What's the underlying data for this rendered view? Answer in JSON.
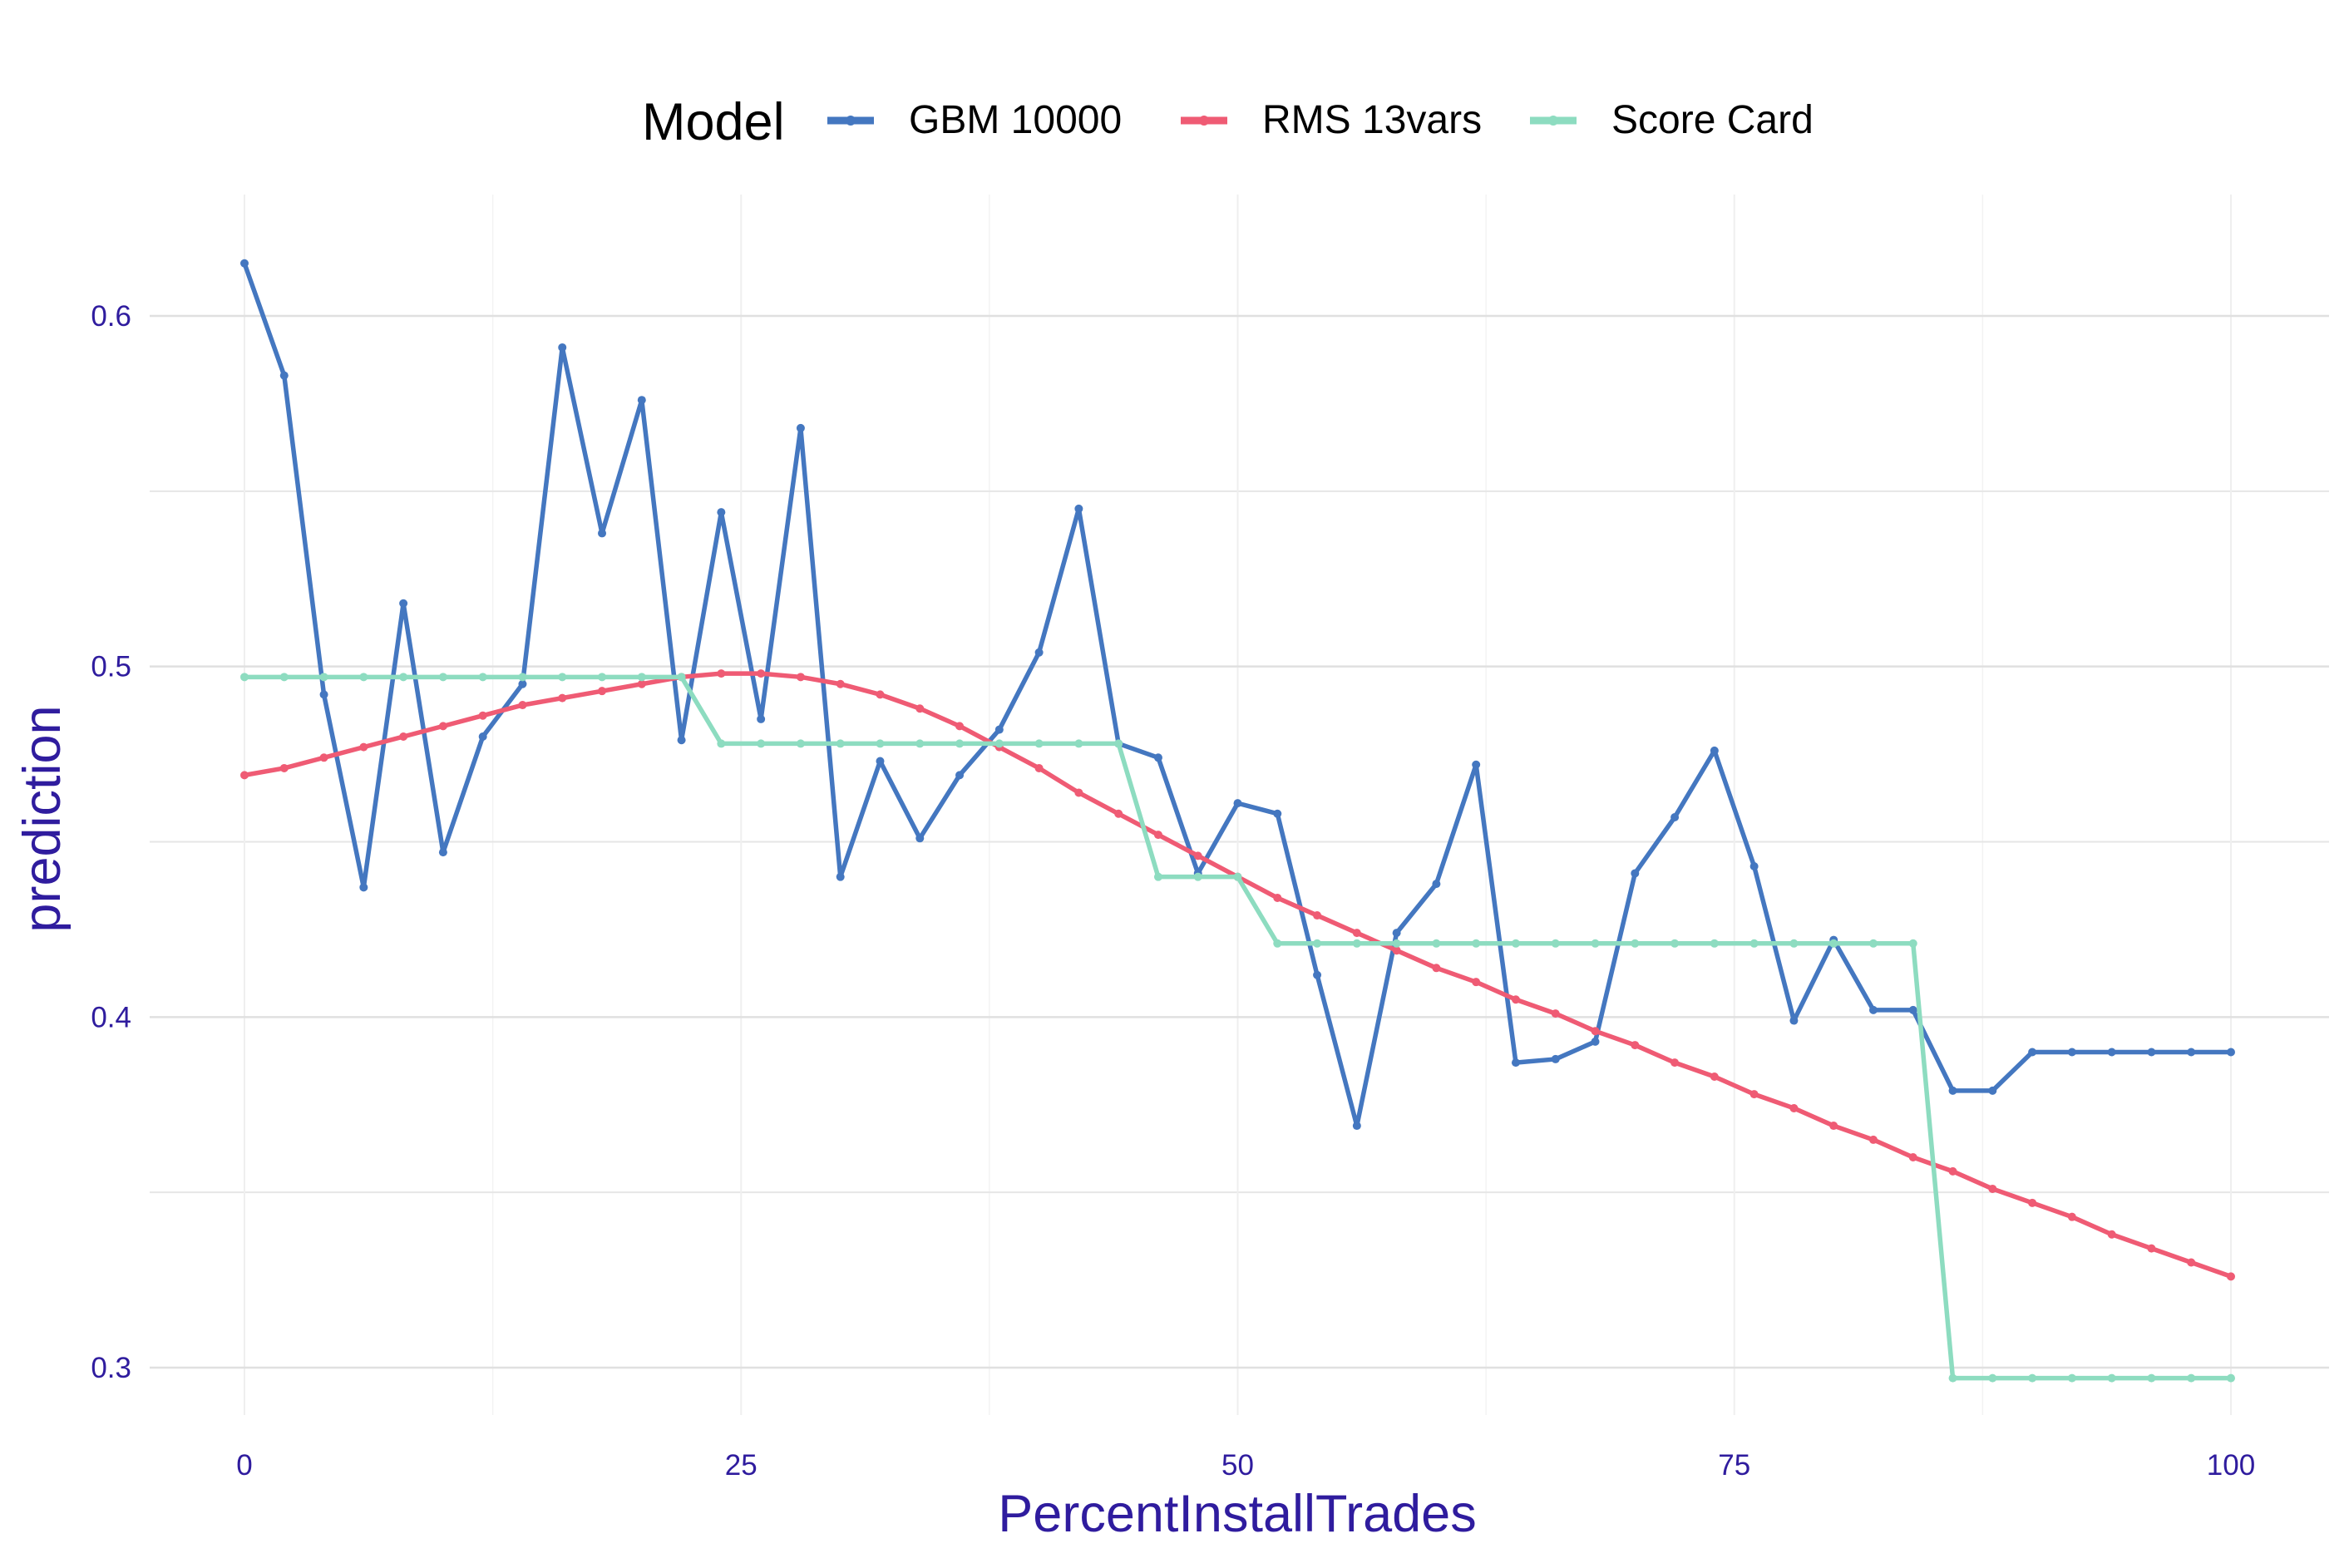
{
  "chart_data": {
    "type": "line",
    "title": "",
    "xlabel": "PercentInstallTrades",
    "ylabel": "prediction",
    "xlim": [
      -5,
      103
    ],
    "ylim": [
      0.284,
      0.628
    ],
    "xticks": [
      0,
      25,
      50,
      75,
      100
    ],
    "xtick_labels": [
      "0",
      "25",
      "50",
      "75",
      "100"
    ],
    "yticks": [
      0.3,
      0.4,
      0.5,
      0.6
    ],
    "ytick_labels": [
      "0.3",
      "0.4",
      "0.5",
      "0.6"
    ],
    "grid": true,
    "legend": {
      "title": "Model",
      "position": "top",
      "entries": [
        "GBM 10000",
        "RMS 13vars",
        "Score Card"
      ]
    },
    "x": [
      0,
      2,
      4,
      6,
      8,
      10,
      12,
      14,
      16,
      18,
      20,
      22,
      24,
      26,
      28,
      30,
      32,
      34,
      36,
      38,
      40,
      42,
      44,
      46,
      48,
      50,
      52,
      54,
      56,
      58,
      60,
      62,
      64,
      66,
      68,
      70,
      72,
      74,
      76,
      78,
      80,
      82,
      84,
      86,
      88,
      90,
      92,
      94,
      96,
      98,
      100
    ],
    "series": [
      {
        "name": "GBM 10000",
        "color": "#4477C0",
        "values": [
          0.615,
          0.583,
          0.492,
          0.437,
          0.518,
          0.447,
          0.48,
          0.495,
          0.591,
          0.538,
          0.576,
          0.479,
          0.544,
          0.485,
          0.568,
          0.44,
          0.473,
          0.451,
          0.469,
          0.482,
          0.504,
          0.545,
          0.478,
          0.474,
          0.441,
          0.461,
          0.458,
          0.412,
          0.369,
          0.424,
          0.438,
          0.472,
          0.387,
          0.388,
          0.393,
          0.441,
          0.457,
          0.476,
          0.443,
          0.399,
          0.422,
          0.402,
          0.402,
          0.379,
          0.379,
          0.39,
          0.39,
          0.39,
          0.39,
          0.39,
          0.39
        ]
      },
      {
        "name": "RMS 13vars",
        "color": "#EF5B74",
        "values": [
          0.469,
          0.471,
          0.474,
          0.477,
          0.48,
          0.483,
          0.486,
          0.489,
          0.491,
          0.493,
          0.495,
          0.497,
          0.498,
          0.498,
          0.497,
          0.495,
          0.492,
          0.488,
          0.483,
          0.477,
          0.471,
          0.464,
          0.458,
          0.452,
          0.446,
          0.44,
          0.434,
          0.429,
          0.424,
          0.419,
          0.414,
          0.41,
          0.405,
          0.401,
          0.396,
          0.392,
          0.387,
          0.383,
          0.378,
          0.374,
          0.369,
          0.365,
          0.36,
          0.356,
          0.351,
          0.347,
          0.343,
          0.338,
          0.334,
          0.33,
          0.326
        ]
      },
      {
        "name": "Score Card",
        "color": "#8DDCC0",
        "values": [
          0.497,
          0.497,
          0.497,
          0.497,
          0.497,
          0.497,
          0.497,
          0.497,
          0.497,
          0.497,
          0.497,
          0.497,
          0.478,
          0.478,
          0.478,
          0.478,
          0.478,
          0.478,
          0.478,
          0.478,
          0.478,
          0.478,
          0.478,
          0.44,
          0.44,
          0.44,
          0.421,
          0.421,
          0.421,
          0.421,
          0.421,
          0.421,
          0.421,
          0.421,
          0.421,
          0.421,
          0.421,
          0.421,
          0.421,
          0.421,
          0.421,
          0.421,
          0.421,
          0.297,
          0.297,
          0.297,
          0.297,
          0.297,
          0.297,
          0.297,
          0.297
        ]
      }
    ]
  },
  "colors": {
    "axis_text": "#2F1C9E",
    "grid": "#E3E3E3"
  }
}
